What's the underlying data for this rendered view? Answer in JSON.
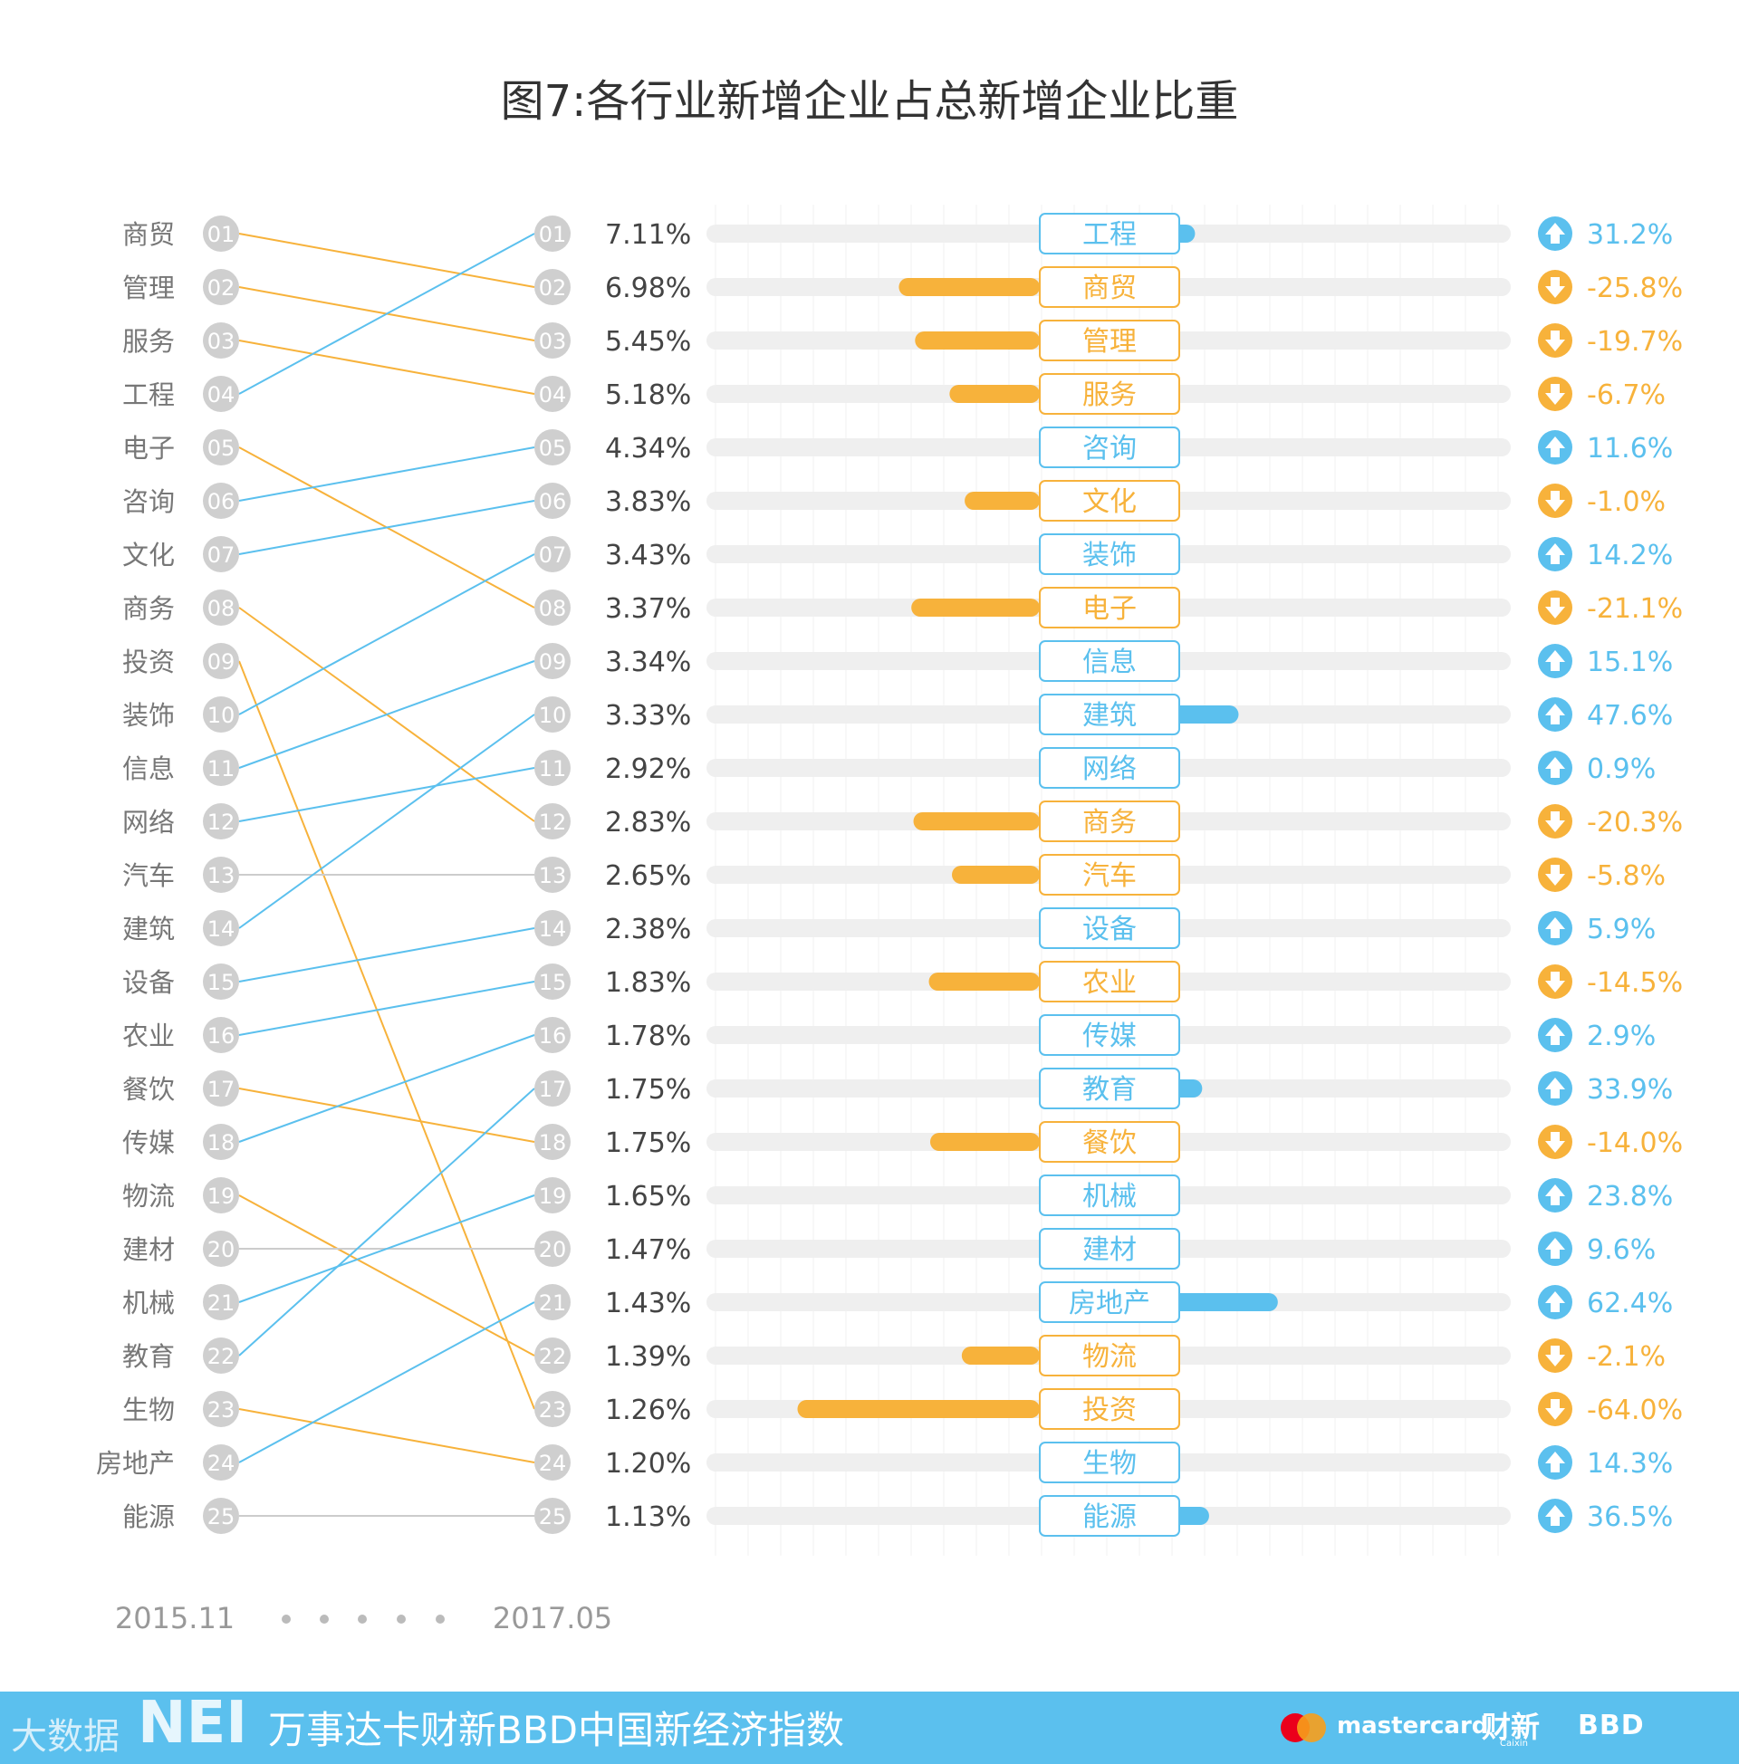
{
  "title": "图7:各行业新增企业占总新增企业比重",
  "footer": {
    "text": "万事达卡财新BBD中国新经济指数",
    "nei_logo": "NEI",
    "watermark": "大数据",
    "mastercard": "mastercard",
    "caixin": "财新",
    "caixin_sub": "Caixin",
    "bbd": "BBD",
    "bar_color": "#5bc0ee"
  },
  "colors": {
    "up": "#5bc0ee",
    "down": "#f7b23b",
    "neutral": "#cccccc",
    "circle": "#cfcfcf",
    "track": "#efefef",
    "label": "#777777"
  },
  "chart_data": {
    "type": "bar",
    "time_start": "2015.11",
    "time_end": "2017.05",
    "left_ranking": [
      "商贸",
      "管理",
      "服务",
      "工程",
      "电子",
      "咨询",
      "文化",
      "商务",
      "投资",
      "装饰",
      "信息",
      "网络",
      "汽车",
      "建筑",
      "设备",
      "农业",
      "餐饮",
      "传媒",
      "物流",
      "建材",
      "机械",
      "教育",
      "生物",
      "房地产",
      "能源"
    ],
    "right_ranking": [
      "工程",
      "商贸",
      "管理",
      "服务",
      "咨询",
      "文化",
      "装饰",
      "电子",
      "信息",
      "建筑",
      "网络",
      "商务",
      "汽车",
      "设备",
      "农业",
      "传媒",
      "教育",
      "餐饮",
      "机械",
      "建材",
      "房地产",
      "物流",
      "投资",
      "生物",
      "能源"
    ],
    "rank_labels": [
      "01",
      "02",
      "03",
      "04",
      "05",
      "06",
      "07",
      "08",
      "09",
      "10",
      "11",
      "12",
      "13",
      "14",
      "15",
      "16",
      "17",
      "18",
      "19",
      "20",
      "21",
      "22",
      "23",
      "24",
      "25"
    ],
    "share_labels": [
      "7.11%",
      "6.98%",
      "5.45%",
      "5.18%",
      "4.34%",
      "3.83%",
      "3.43%",
      "3.37%",
      "3.34%",
      "3.33%",
      "2.92%",
      "2.83%",
      "2.65%",
      "2.38%",
      "1.83%",
      "1.78%",
      "1.75%",
      "1.75%",
      "1.65%",
      "1.47%",
      "1.43%",
      "1.39%",
      "1.26%",
      "1.20%",
      "1.13%"
    ],
    "change_values": [
      31.2,
      -25.8,
      -19.7,
      -6.7,
      11.6,
      -1.0,
      14.2,
      -21.1,
      15.1,
      47.6,
      0.9,
      -20.3,
      -5.8,
      5.9,
      -14.5,
      2.9,
      33.9,
      -14.0,
      23.8,
      9.6,
      62.4,
      -2.1,
      -64.0,
      14.3,
      36.5
    ],
    "change_labels": [
      "31.2%",
      "-25.8%",
      "-19.7%",
      "-6.7%",
      "11.6%",
      "-1.0%",
      "14.2%",
      "-21.1%",
      "15.1%",
      "47.6%",
      "0.9%",
      "-20.3%",
      "-5.8%",
      "5.9%",
      "-14.5%",
      "2.9%",
      "33.9%",
      "-14.0%",
      "23.8%",
      "9.6%",
      "62.4%",
      "-2.1%",
      "-64.0%",
      "14.3%",
      "36.5%"
    ]
  }
}
